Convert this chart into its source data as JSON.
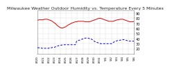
{
  "title": "Milwaukee Weather Outdoor Humidity vs. Temperature Every 5 Minutes",
  "bg_color": "#ffffff",
  "grid_color": "#aaaaaa",
  "temp_color": "#dd0000",
  "humidity_color": "#0000cc",
  "temp_data": [
    76,
    77,
    77,
    77,
    77,
    78,
    78,
    78,
    77,
    76,
    75,
    73,
    71,
    69,
    66,
    64,
    62,
    61,
    61,
    62,
    63,
    65,
    67,
    68,
    70,
    71,
    72,
    73,
    73,
    74,
    74,
    74,
    74,
    74,
    73,
    73,
    73,
    73,
    74,
    75,
    76,
    77,
    78,
    79,
    80,
    80,
    79,
    78,
    77,
    76,
    75,
    74,
    74,
    74,
    74,
    75,
    76,
    77,
    77,
    78,
    78,
    78,
    77,
    76,
    75,
    74,
    73,
    73,
    73,
    74
  ],
  "humidity_data": [
    22,
    22,
    22,
    21,
    21,
    21,
    21,
    21,
    21,
    22,
    22,
    23,
    23,
    24,
    25,
    26,
    27,
    27,
    28,
    28,
    28,
    28,
    28,
    28,
    28,
    28,
    28,
    28,
    35,
    36,
    37,
    38,
    39,
    40,
    41,
    41,
    41,
    40,
    40,
    38,
    36,
    34,
    33,
    32,
    31,
    30,
    30,
    30,
    30,
    30,
    30,
    30,
    30,
    30,
    32,
    34,
    35,
    36,
    36,
    37,
    37,
    38,
    38,
    37,
    36,
    35,
    35,
    35,
    35,
    35
  ],
  "ymin": 10,
  "ymax": 95,
  "yticks": [
    20,
    30,
    40,
    50,
    60,
    70,
    80,
    90
  ],
  "title_fontsize": 4.5,
  "tick_fontsize": 3.5,
  "linewidth": 0.7
}
